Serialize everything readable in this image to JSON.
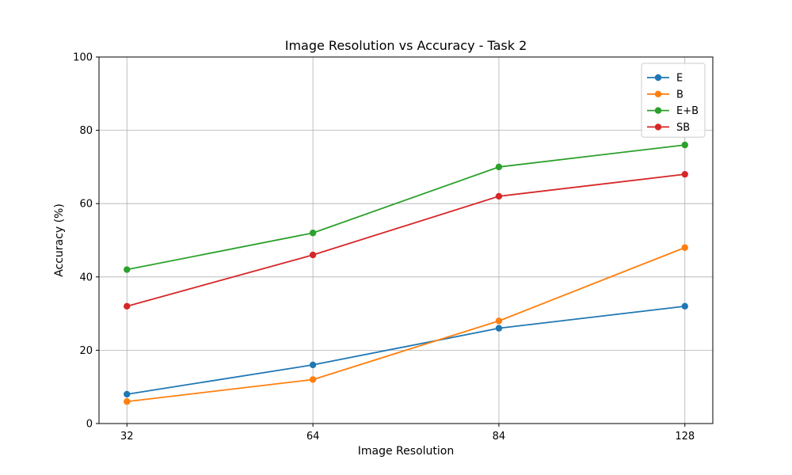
{
  "chart_data": {
    "type": "line",
    "title": "Image Resolution vs Accuracy - Task 2",
    "xlabel": "Image Resolution",
    "ylabel": "Accuracy (%)",
    "categories": [
      "32",
      "64",
      "84",
      "128"
    ],
    "ylim": [
      0,
      100
    ],
    "yticks": [
      0,
      20,
      40,
      60,
      80,
      100
    ],
    "grid": true,
    "legend_position": "top-right",
    "series": [
      {
        "name": "E",
        "color": "#1f77b4",
        "values": [
          8,
          16,
          26,
          32
        ]
      },
      {
        "name": "B",
        "color": "#ff7f0e",
        "values": [
          6,
          12,
          28,
          48
        ]
      },
      {
        "name": "E+B",
        "color": "#2ca02c",
        "values": [
          42,
          52,
          70,
          76
        ]
      },
      {
        "name": "SB",
        "color": "#d62728",
        "values": [
          32,
          46,
          62,
          68
        ]
      }
    ]
  }
}
